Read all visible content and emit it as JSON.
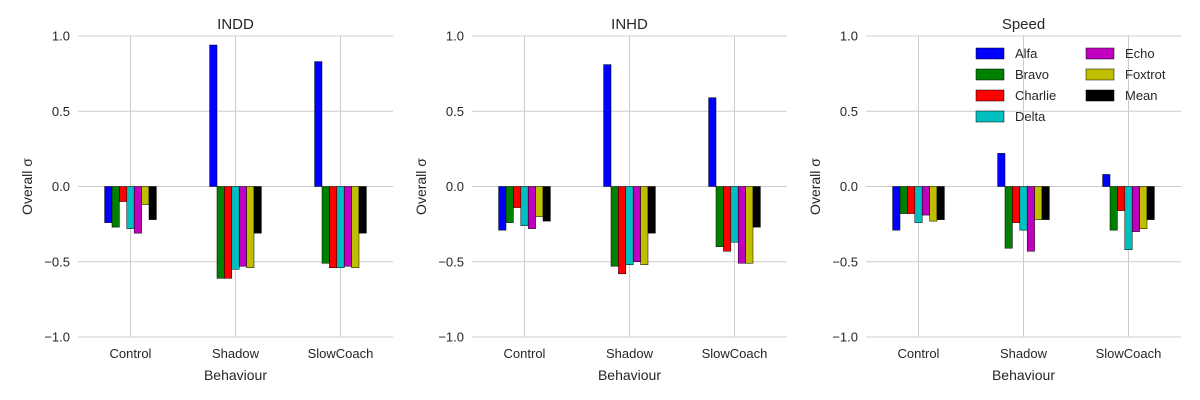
{
  "chart_data": [
    {
      "type": "bar",
      "title": "INDD",
      "xlabel": "Behaviour",
      "ylabel": "Overall σ",
      "ylim": [
        -1.0,
        1.0
      ],
      "yticks": [
        -1.0,
        -0.5,
        0.0,
        0.5,
        1.0
      ],
      "ytick_labels": [
        "−1.0",
        "−0.5",
        "0.0",
        "0.5",
        "1.0"
      ],
      "grid": true,
      "categories": [
        "Control",
        "Shadow",
        "SlowCoach"
      ],
      "series": [
        {
          "name": "Alfa",
          "color": "#0000ff",
          "values": [
            -0.24,
            0.94,
            0.83
          ]
        },
        {
          "name": "Bravo",
          "color": "#008000",
          "values": [
            -0.27,
            -0.61,
            -0.51
          ]
        },
        {
          "name": "Charlie",
          "color": "#ff0000",
          "values": [
            -0.1,
            -0.61,
            -0.54
          ]
        },
        {
          "name": "Delta",
          "color": "#00bfbf",
          "values": [
            -0.28,
            -0.55,
            -0.54
          ]
        },
        {
          "name": "Echo",
          "color": "#bf00bf",
          "values": [
            -0.31,
            -0.53,
            -0.53
          ]
        },
        {
          "name": "Foxtrot",
          "color": "#bfbf00",
          "values": [
            -0.12,
            -0.54,
            -0.54
          ]
        },
        {
          "name": "Mean",
          "color": "#000000",
          "values": [
            -0.22,
            -0.31,
            -0.31
          ]
        }
      ]
    },
    {
      "type": "bar",
      "title": "INHD",
      "xlabel": "Behaviour",
      "ylabel": "Overall σ",
      "ylim": [
        -1.0,
        1.0
      ],
      "yticks": [
        -1.0,
        -0.5,
        0.0,
        0.5,
        1.0
      ],
      "ytick_labels": [
        "−1.0",
        "−0.5",
        "0.0",
        "0.5",
        "1.0"
      ],
      "grid": true,
      "categories": [
        "Control",
        "Shadow",
        "SlowCoach"
      ],
      "series": [
        {
          "name": "Alfa",
          "color": "#0000ff",
          "values": [
            -0.29,
            0.81,
            0.59
          ]
        },
        {
          "name": "Bravo",
          "color": "#008000",
          "values": [
            -0.24,
            -0.53,
            -0.4
          ]
        },
        {
          "name": "Charlie",
          "color": "#ff0000",
          "values": [
            -0.14,
            -0.58,
            -0.43
          ]
        },
        {
          "name": "Delta",
          "color": "#00bfbf",
          "values": [
            -0.26,
            -0.52,
            -0.37
          ]
        },
        {
          "name": "Echo",
          "color": "#bf00bf",
          "values": [
            -0.28,
            -0.5,
            -0.51
          ]
        },
        {
          "name": "Foxtrot",
          "color": "#bfbf00",
          "values": [
            -0.2,
            -0.52,
            -0.51
          ]
        },
        {
          "name": "Mean",
          "color": "#000000",
          "values": [
            -0.23,
            -0.31,
            -0.27
          ]
        }
      ]
    },
    {
      "type": "bar",
      "title": "Speed",
      "xlabel": "Behaviour",
      "ylabel": "Overall σ",
      "ylim": [
        -1.0,
        1.0
      ],
      "yticks": [
        -1.0,
        -0.5,
        0.0,
        0.5,
        1.0
      ],
      "ytick_labels": [
        "−1.0",
        "−0.5",
        "0.0",
        "0.5",
        "1.0"
      ],
      "grid": true,
      "legend": "top-right",
      "categories": [
        "Control",
        "Shadow",
        "SlowCoach"
      ],
      "series": [
        {
          "name": "Alfa",
          "color": "#0000ff",
          "values": [
            -0.29,
            0.22,
            0.08
          ]
        },
        {
          "name": "Bravo",
          "color": "#008000",
          "values": [
            -0.18,
            -0.41,
            -0.29
          ]
        },
        {
          "name": "Charlie",
          "color": "#ff0000",
          "values": [
            -0.18,
            -0.24,
            -0.16
          ]
        },
        {
          "name": "Delta",
          "color": "#00bfbf",
          "values": [
            -0.24,
            -0.29,
            -0.42
          ]
        },
        {
          "name": "Echo",
          "color": "#bf00bf",
          "values": [
            -0.19,
            -0.43,
            -0.3
          ]
        },
        {
          "name": "Foxtrot",
          "color": "#bfbf00",
          "values": [
            -0.23,
            -0.22,
            -0.28
          ]
        },
        {
          "name": "Mean",
          "color": "#000000",
          "values": [
            -0.22,
            -0.22,
            -0.22
          ]
        }
      ]
    }
  ]
}
